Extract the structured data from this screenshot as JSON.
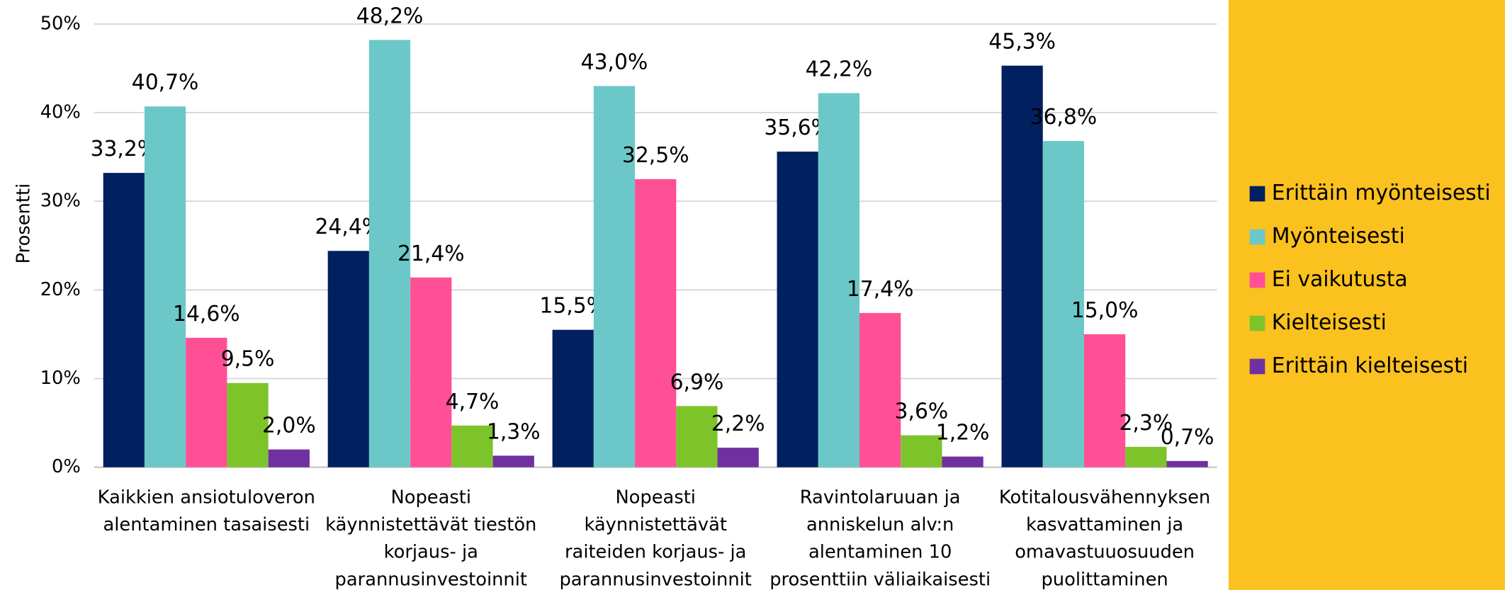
{
  "chart_data": {
    "type": "bar",
    "y_label": "Prosentti",
    "categories": [
      [
        "Kaikkien ansiotuloveron",
        "alentaminen tasaisesti"
      ],
      [
        "Nopeasti",
        "käynnistettävät tiestön",
        "korjaus- ja",
        "parannusinvestoinnit"
      ],
      [
        "Nopeasti",
        "käynnistettävät",
        "raiteiden korjaus- ja",
        "parannusinvestoinnit"
      ],
      [
        "Ravintolaruuan ja",
        "anniskelun alv:n",
        "alentaminen 10",
        "prosenttiin väliaikaisesti"
      ],
      [
        "Kotitalousvähennyksen",
        "kasvattaminen ja",
        "omavastuuosuuden",
        "puolittaminen"
      ]
    ],
    "series": [
      {
        "name": "Erittäin myönteisesti",
        "color": "#002060",
        "values": [
          33.2,
          24.4,
          15.5,
          35.6,
          45.3
        ],
        "value_labels": [
          "33,2%",
          "24,4%",
          "15,5%",
          "35,6%",
          "45,3%"
        ]
      },
      {
        "name": "Myönteisesti",
        "color": "#6cc8c8",
        "values": [
          40.7,
          48.2,
          43.0,
          42.2,
          36.8
        ],
        "value_labels": [
          "40,7%",
          "48,2%",
          "43,0%",
          "42,2%",
          "36,8%"
        ]
      },
      {
        "name": "Ei vaikutusta",
        "color": "#ff5096",
        "values": [
          14.6,
          21.4,
          32.5,
          17.4,
          15.0
        ],
        "value_labels": [
          "14,6%",
          "21,4%",
          "32,5%",
          "17,4%",
          "15,0%"
        ]
      },
      {
        "name": "Kielteisesti",
        "color": "#7dc42a",
        "values": [
          9.5,
          4.7,
          6.9,
          3.6,
          2.3
        ],
        "value_labels": [
          "9,5%",
          "4,7%",
          "6,9%",
          "3,6%",
          "2,3%"
        ]
      },
      {
        "name": "Erittäin kielteisesti",
        "color": "#7030a0",
        "values": [
          2.0,
          1.3,
          2.2,
          1.2,
          0.7
        ],
        "value_labels": [
          "2,0%",
          "1,3%",
          "2,2%",
          "1,2%",
          "0,7%"
        ]
      }
    ],
    "ylim": [
      0,
      50
    ],
    "yticks": [
      {
        "value": 0,
        "label": "0%"
      },
      {
        "value": 10,
        "label": "10%"
      },
      {
        "value": 20,
        "label": "20%"
      },
      {
        "value": 30,
        "label": "30%"
      },
      {
        "value": 40,
        "label": "40%"
      },
      {
        "value": 50,
        "label": "50%"
      }
    ],
    "grid": true,
    "legend": "right"
  }
}
